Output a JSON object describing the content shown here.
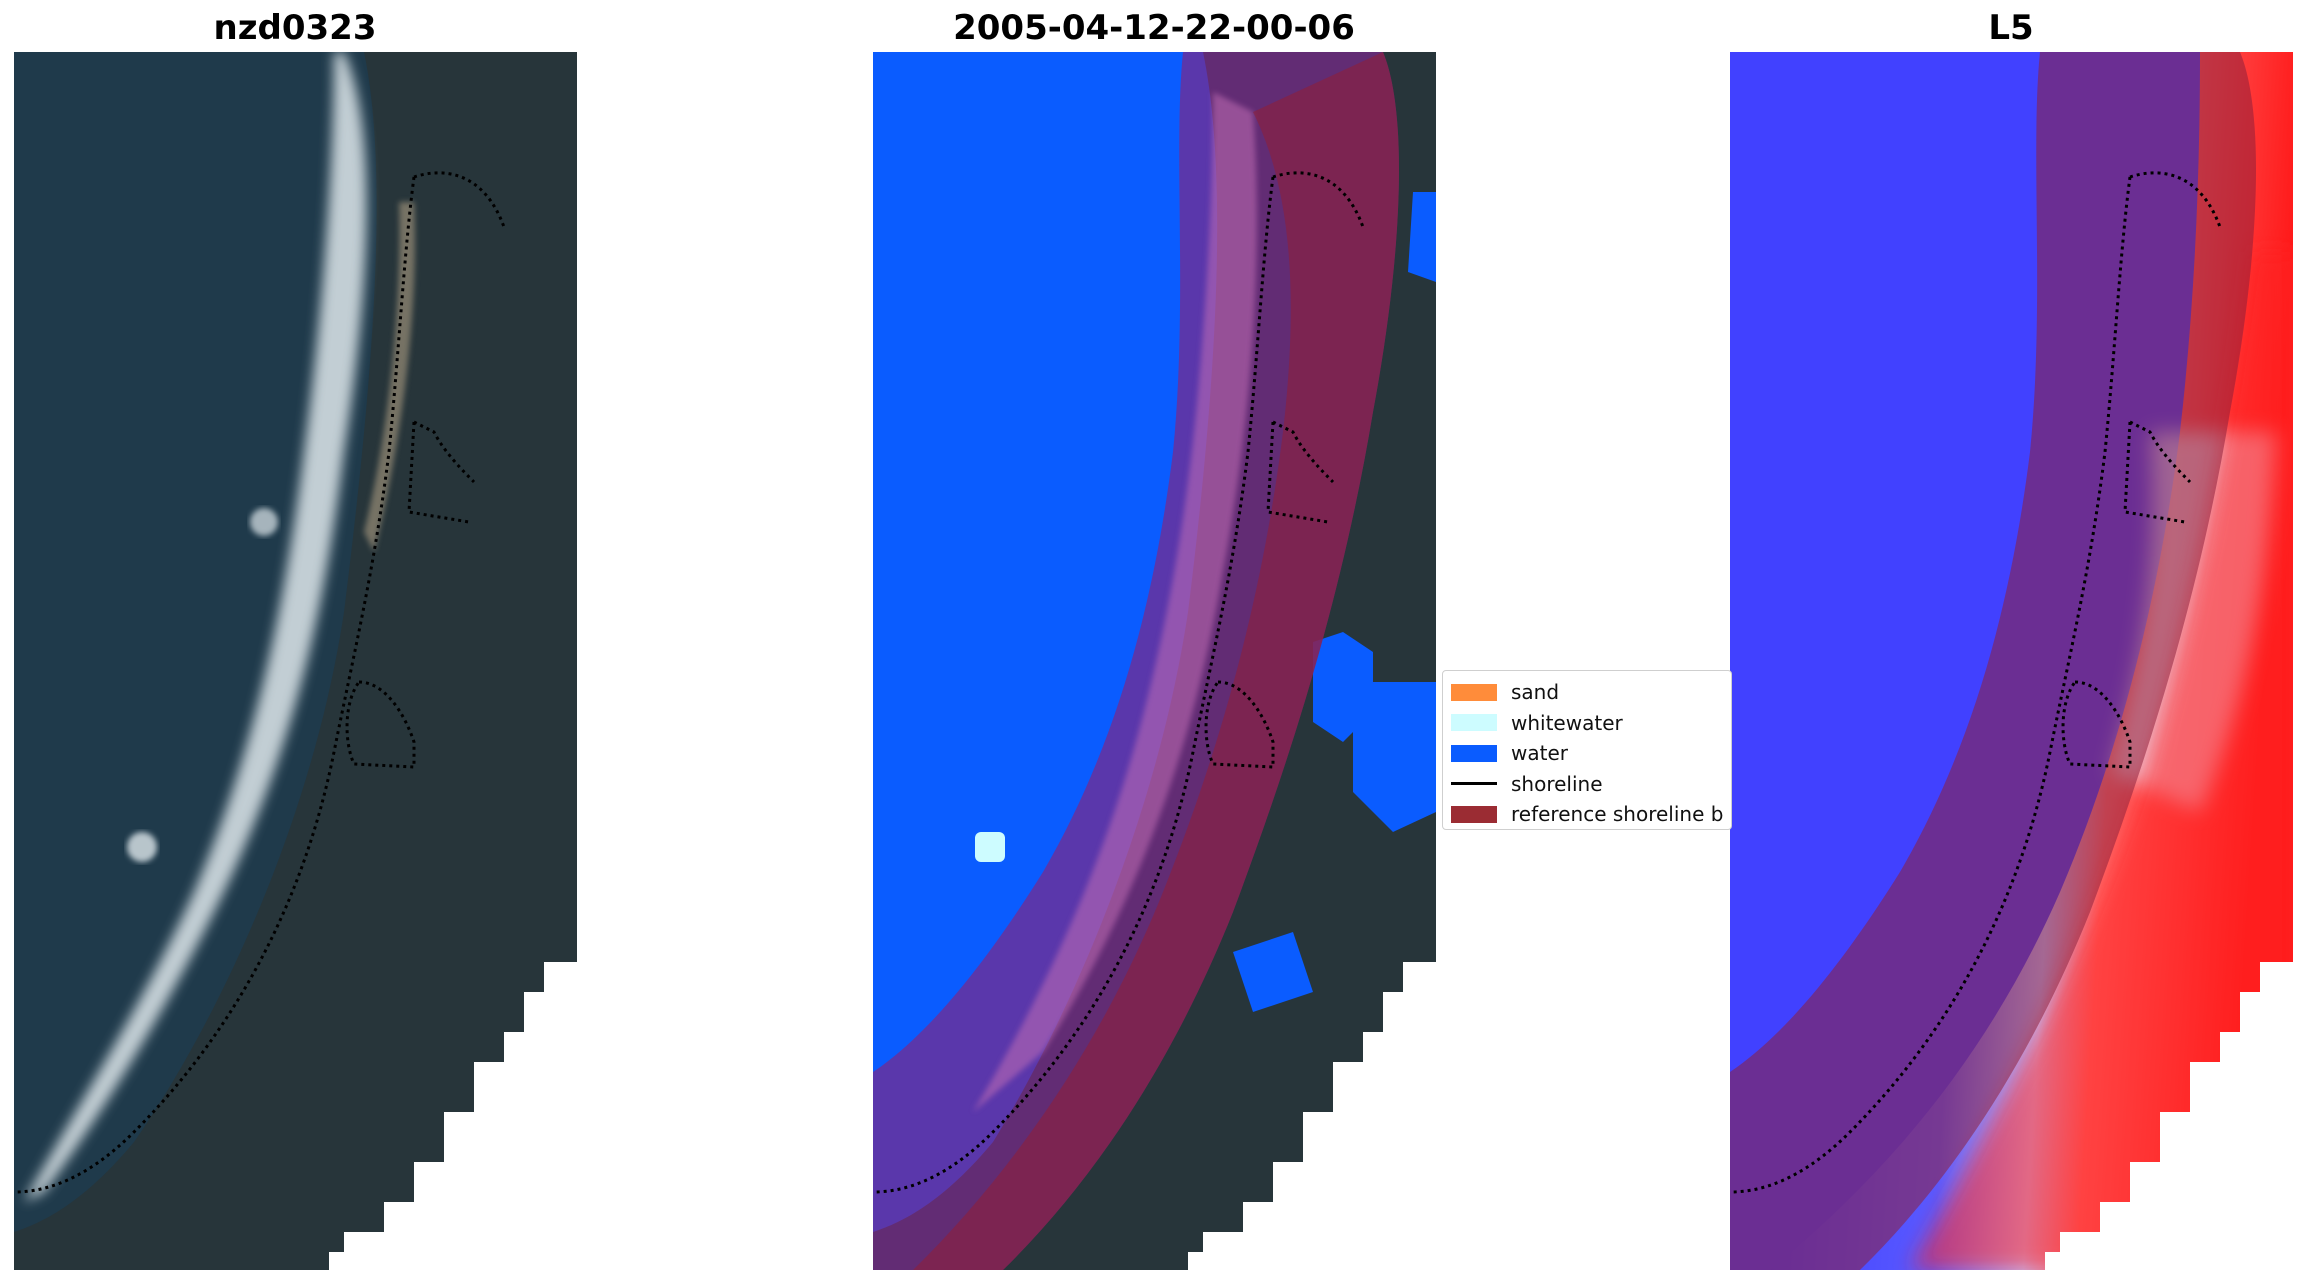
{
  "panels": [
    {
      "id": "rgb",
      "title": "nzd0323"
    },
    {
      "id": "classified",
      "title": "2005-04-12-22-00-06"
    },
    {
      "id": "index",
      "title": "L5"
    }
  ],
  "legend": {
    "items": [
      {
        "label": "sand",
        "kind": "patch",
        "color": "#ff8c3a"
      },
      {
        "label": "whitewater",
        "kind": "patch",
        "color": "#cdfcff"
      },
      {
        "label": "water",
        "kind": "patch",
        "color": "#0a5cff"
      },
      {
        "label": "shoreline",
        "kind": "line",
        "color": "#000000"
      },
      {
        "label": "reference shoreline b",
        "kind": "patch",
        "color": "#9b2c33"
      }
    ]
  },
  "colors": {
    "ocean": "#1f3a4b",
    "land": "#27353a",
    "surf": "#dfe8ec",
    "water_class": "#0a5cff",
    "buffer_overlay": "#8e1f3a",
    "index_low": "#2424ff",
    "index_high": "#ff1a1a"
  }
}
